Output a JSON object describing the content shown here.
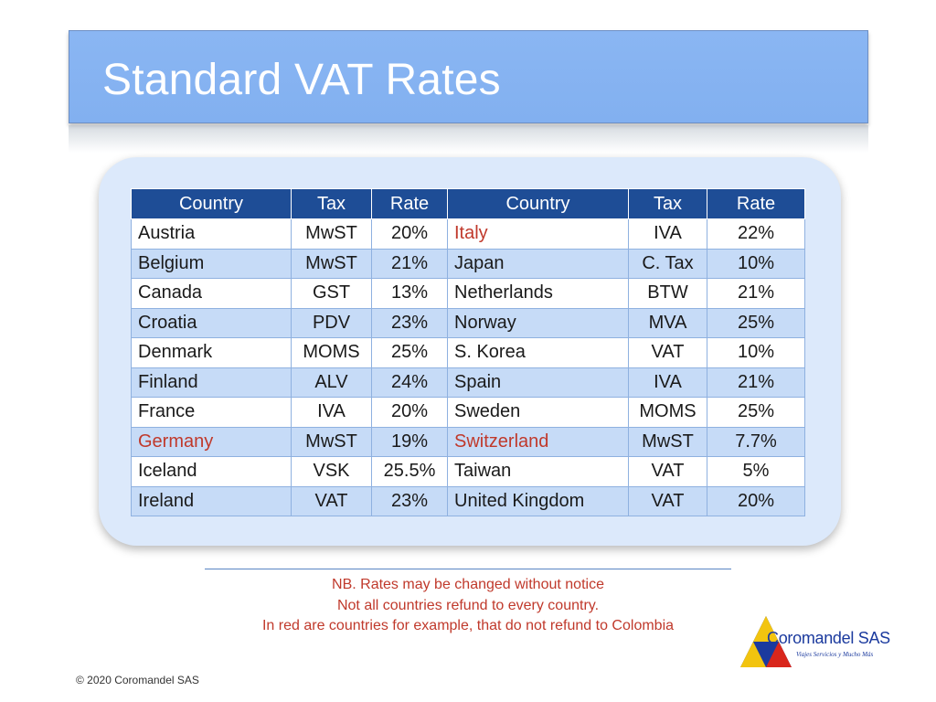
{
  "slide": {
    "title": "Standard VAT Rates",
    "copyright": "© 2020 Coromandel SAS"
  },
  "table": {
    "headers": [
      "Country",
      "Tax",
      "Rate",
      "Country",
      "Tax",
      "Rate"
    ],
    "rows": [
      {
        "country1": "Austria",
        "tax1": "MwST",
        "rate1": "20%",
        "country2": "Italy",
        "tax2": "IVA",
        "rate2": "22%"
      },
      {
        "country1": "Belgium",
        "tax1": "MwST",
        "rate1": "21%",
        "country2": "Japan",
        "tax2": "C. Tax",
        "rate2": "10%"
      },
      {
        "country1": "Canada",
        "tax1": "GST",
        "rate1": "13%",
        "country2": "Netherlands",
        "tax2": "BTW",
        "rate2": "21%"
      },
      {
        "country1": "Croatia",
        "tax1": "PDV",
        "rate1": "23%",
        "country2": "Norway",
        "tax2": "MVA",
        "rate2": "25%"
      },
      {
        "country1": "Denmark",
        "tax1": "MOMS",
        "rate1": "25%",
        "country2": "S. Korea",
        "tax2": "VAT",
        "rate2": "10%"
      },
      {
        "country1": "Finland",
        "tax1": "ALV",
        "rate1": "24%",
        "country2": "Spain",
        "tax2": "IVA",
        "rate2": "21%"
      },
      {
        "country1": "France",
        "tax1": "IVA",
        "rate1": "20%",
        "country2": "Sweden",
        "tax2": "MOMS",
        "rate2": "25%"
      },
      {
        "country1": "Germany",
        "tax1": "MwST",
        "rate1": "19%",
        "country2": "Switzerland",
        "tax2": "MwST",
        "rate2": "7.7%"
      },
      {
        "country1": "Iceland",
        "tax1": "VSK",
        "rate1": "25.5%",
        "country2": "Taiwan",
        "tax2": "VAT",
        "rate2": "5%"
      },
      {
        "country1": "Ireland",
        "tax1": "VAT",
        "rate1": "23%",
        "country2": "United Kingdom",
        "tax2": "VAT",
        "rate2": "20%"
      }
    ]
  },
  "notes": {
    "line1": "NB. Rates may be changed without notice",
    "line2": "Not all countries refund to every country.",
    "line3": "In red are countries for example, that do not refund to Colombia"
  },
  "logo": {
    "name": "Coromandel SAS",
    "tagline": "Viajes Servicios y Mucho Más"
  },
  "colors": {
    "title_bar": "#82b0f0",
    "header_bg": "#1e4d96",
    "alt_row": "#c6dbf7",
    "panel": "#dce9fb",
    "non_refund_red": "#c0392b"
  }
}
